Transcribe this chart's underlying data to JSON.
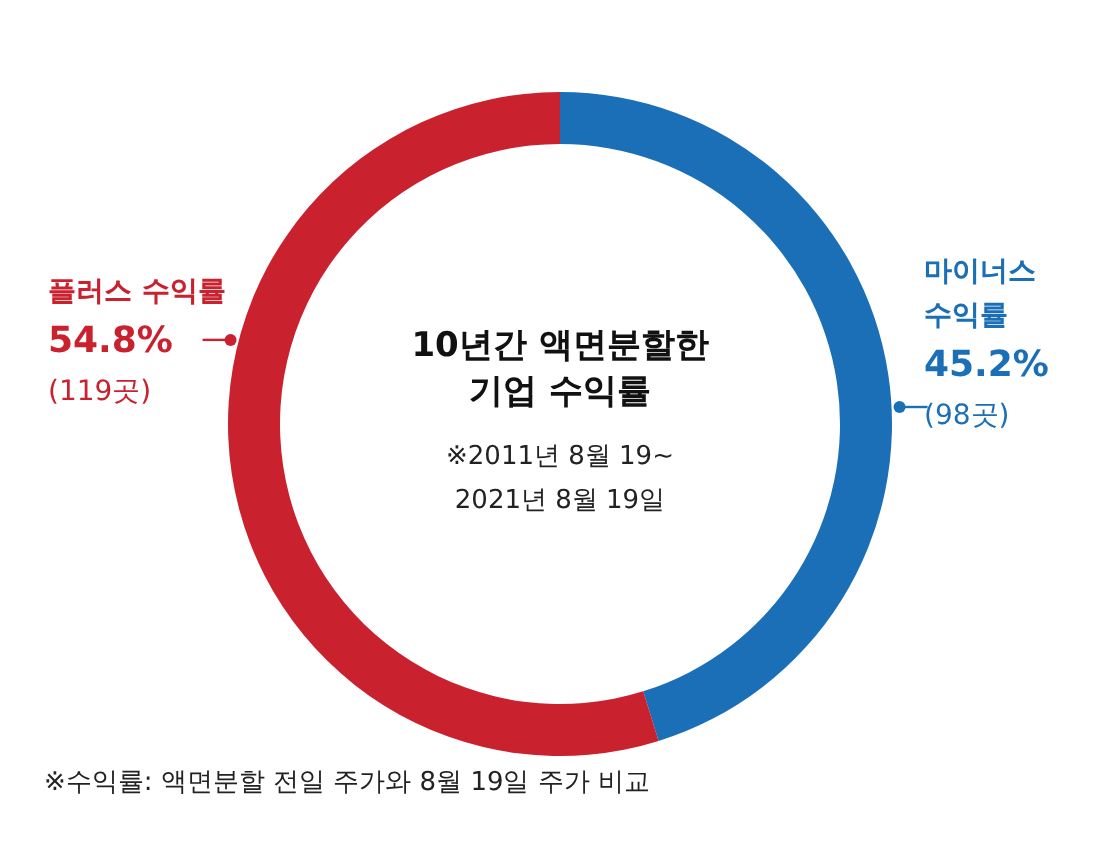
{
  "chart_data": {
    "type": "donut",
    "title": "10년간 액면분할한 기업 수익률",
    "subtitle": "※2011년 8월 19~ 2021년 8월 19일",
    "categories": [
      "마이너스 수익률",
      "플러스 수익률"
    ],
    "values": [
      45.2,
      54.8
    ],
    "colors": [
      "#1b6fb7",
      "#c9212e"
    ],
    "value_labels": [
      "45.2%",
      "54.8%"
    ],
    "annotations": [
      {
        "text": "(98곳)",
        "x": "마이너스 수익률"
      },
      {
        "text": "(119곳)",
        "x": "플러스 수익률"
      },
      "※수익률: 액면분할 전일 주가와 8월 19일 주가 비교"
    ],
    "data_labels": false
  }
}
